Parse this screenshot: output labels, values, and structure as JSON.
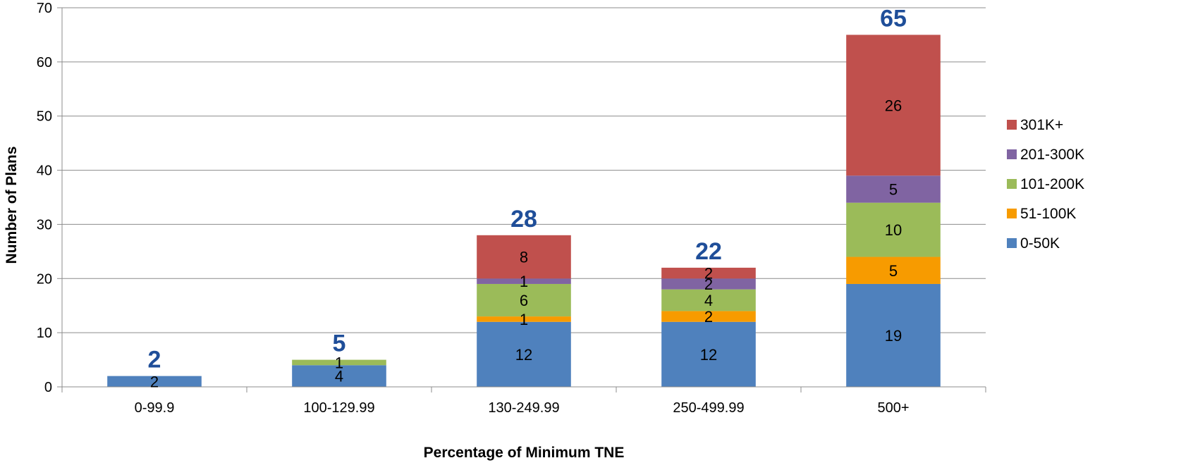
{
  "chart_data": {
    "type": "bar",
    "stacked": true,
    "xlabel": "Percentage of Minimum TNE",
    "ylabel": "Number of Plans",
    "ylim": [
      0,
      70
    ],
    "yticks": [
      0,
      10,
      20,
      30,
      40,
      50,
      60,
      70
    ],
    "grid": true,
    "legend_position": "right",
    "categories": [
      "0-99.9",
      "100-129.99",
      "130-249.99",
      "250-499.99",
      "500+"
    ],
    "series": [
      {
        "name": "0-50K",
        "color": "#4f81bd",
        "values": [
          2,
          4,
          12,
          12,
          19
        ]
      },
      {
        "name": "51-100K",
        "color": "#f79b00",
        "values": [
          0,
          0,
          1,
          2,
          5
        ]
      },
      {
        "name": "101-200K",
        "color": "#9bbb59",
        "values": [
          0,
          1,
          6,
          4,
          10
        ]
      },
      {
        "name": "201-300K",
        "color": "#8064a2",
        "values": [
          0,
          0,
          1,
          2,
          5
        ]
      },
      {
        "name": "301K+",
        "color": "#c0504d",
        "values": [
          0,
          0,
          8,
          2,
          26
        ]
      }
    ],
    "totals": [
      2,
      5,
      28,
      22,
      65
    ],
    "total_label_color": "#1f4e99"
  }
}
